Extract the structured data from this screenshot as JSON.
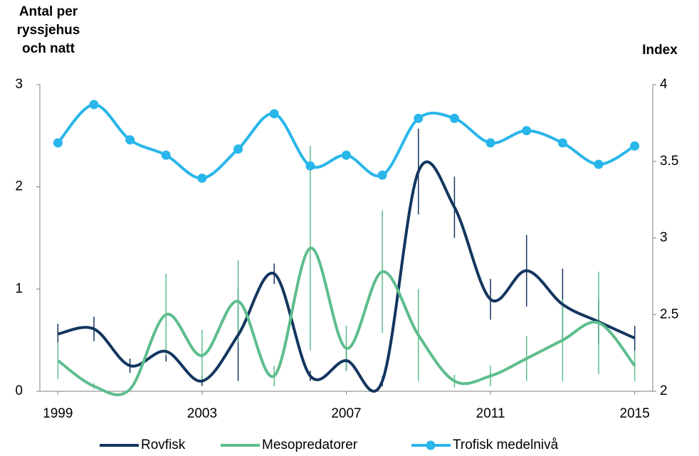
{
  "chart_data": {
    "type": "line",
    "y_label": "Antal per ryssjehus och natt",
    "y2_label": "Index",
    "x": [
      1999,
      2000,
      2001,
      2002,
      2003,
      2004,
      2005,
      2006,
      2007,
      2008,
      2009,
      2010,
      2011,
      2012,
      2013,
      2014,
      2015
    ],
    "xlim": [
      1998.5,
      2015.5
    ],
    "xticks": [
      1999,
      2003,
      2007,
      2011,
      2015
    ],
    "ylim": [
      0,
      3
    ],
    "yticks": [
      0,
      1,
      2,
      3
    ],
    "y2lim": [
      2,
      4
    ],
    "y2ticks": [
      2,
      2.5,
      3,
      3.5,
      4
    ],
    "smooth": true,
    "series": [
      {
        "name": "Rovfisk",
        "color": "#12365f",
        "axis": "y",
        "markers": false,
        "values": [
          0.56,
          0.61,
          0.25,
          0.39,
          0.1,
          0.55,
          1.15,
          0.15,
          0.3,
          0.1,
          2.15,
          1.8,
          0.9,
          1.18,
          0.85,
          0.68,
          0.52
        ],
        "errors": [
          0.1,
          0.12,
          0.07,
          0.1,
          0.05,
          0.45,
          0.1,
          0.05,
          0.1,
          0.05,
          0.42,
          0.3,
          0.2,
          0.35,
          0.35,
          0.22,
          0.12
        ]
      },
      {
        "name": "Mesopredatorer",
        "color": "#5dbd8c",
        "axis": "y",
        "markers": false,
        "values": [
          0.3,
          0.05,
          0.02,
          0.75,
          0.35,
          0.88,
          0.15,
          1.4,
          0.42,
          1.17,
          0.55,
          0.1,
          0.15,
          0.32,
          0.5,
          0.67,
          0.25
        ],
        "errors": [
          0.18,
          0.03,
          0.02,
          0.4,
          0.25,
          0.4,
          0.1,
          1.0,
          0.22,
          0.6,
          0.45,
          0.06,
          0.1,
          0.22,
          0.4,
          0.5,
          0.15
        ]
      },
      {
        "name": "Trofisk medelnivå",
        "color": "#29b6ea",
        "axis": "y2",
        "markers": true,
        "values": [
          3.62,
          3.87,
          3.64,
          3.54,
          3.39,
          3.58,
          3.81,
          3.47,
          3.54,
          3.41,
          3.78,
          3.78,
          3.62,
          3.7,
          3.62,
          3.48,
          3.6
        ]
      }
    ]
  }
}
